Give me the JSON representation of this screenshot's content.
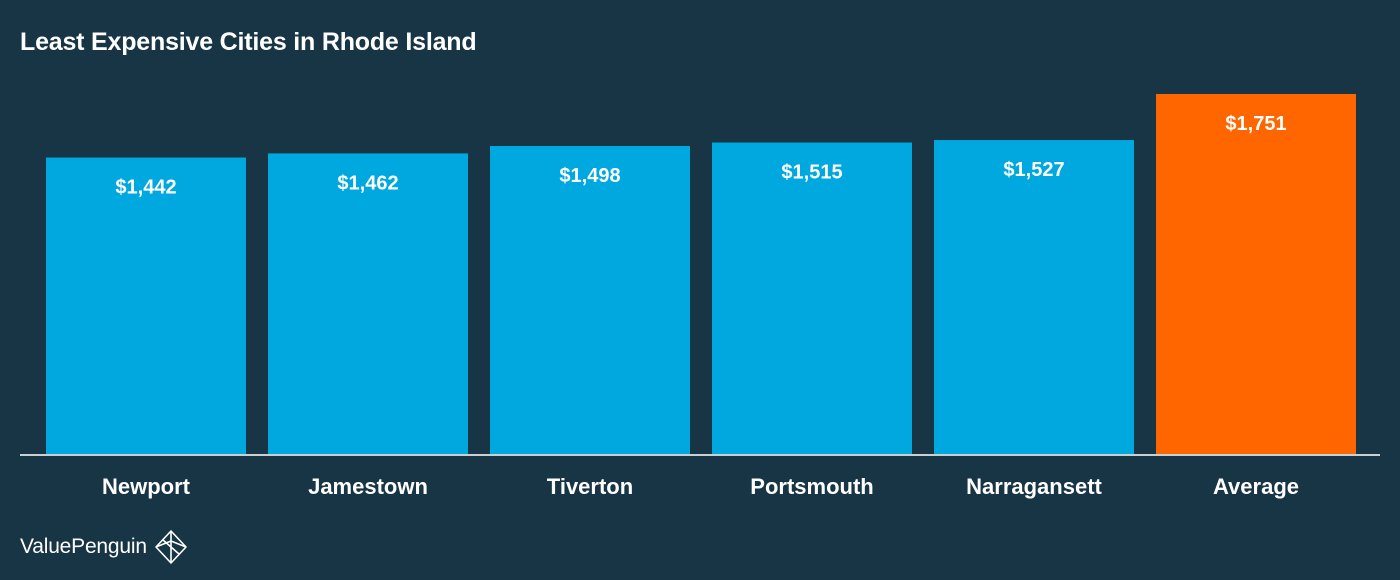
{
  "colors": {
    "background": "#173545",
    "bar": "#00a8e0",
    "highlight_bar": "#ff6600",
    "baseline": "#c9d0d4",
    "text": "#ffffff"
  },
  "brand": {
    "name": "ValuePenguin",
    "icon": "penguin-diamond-icon"
  },
  "chart_data": {
    "type": "bar",
    "title": "Least Expensive Cities in Rhode Island",
    "xlabel": "",
    "ylabel": "",
    "ylim": [
      0,
      1751
    ],
    "grid": false,
    "categories": [
      "Newport",
      "Jamestown",
      "Tiverton",
      "Portsmouth",
      "Narragansett",
      "Average"
    ],
    "values": [
      1442,
      1462,
      1498,
      1515,
      1527,
      1751
    ],
    "data_labels": [
      "$1,442",
      "$1,462",
      "$1,498",
      "$1,515",
      "$1,527",
      "$1,751"
    ],
    "highlight_category": "Average"
  }
}
